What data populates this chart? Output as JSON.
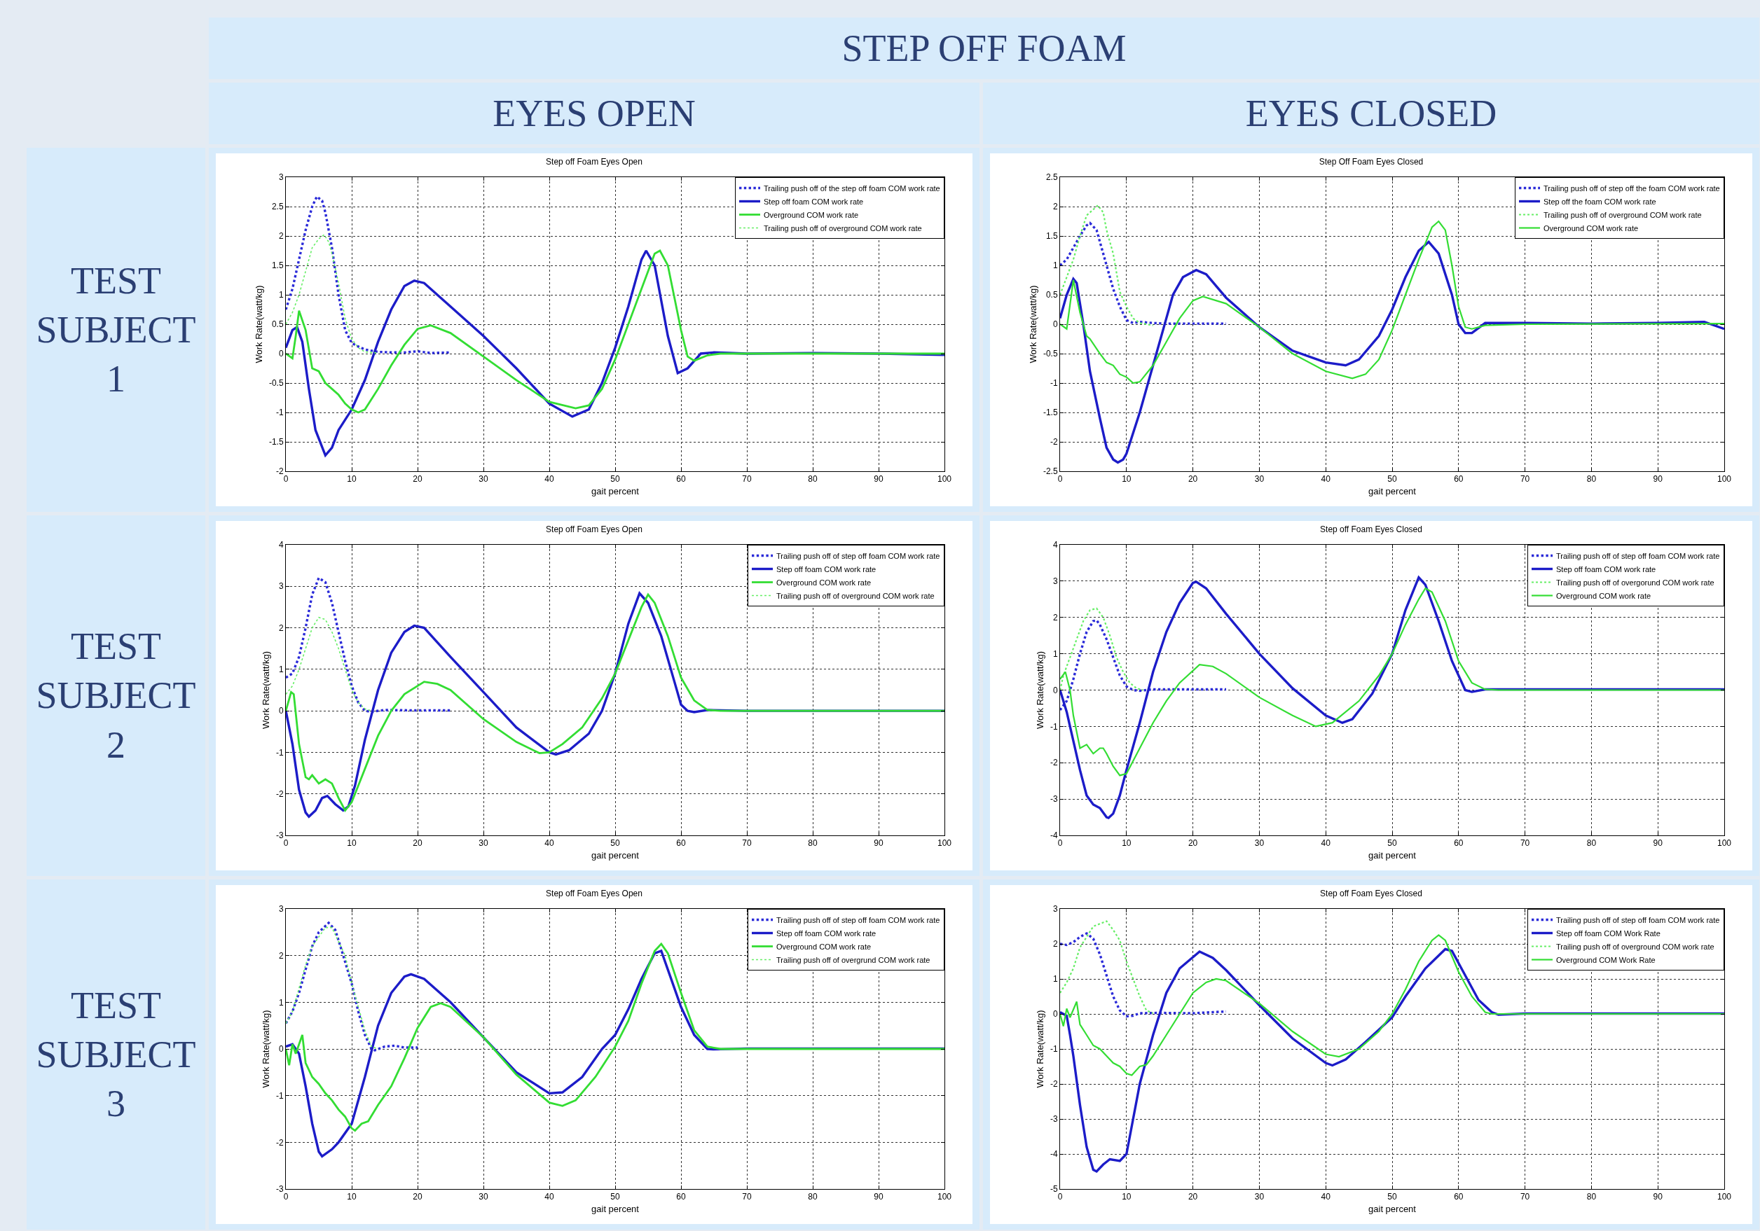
{
  "chart_data": [
    {
      "type": "line",
      "title": "Step off Foam Eyes Open",
      "xlabel": "gait percent",
      "ylabel": "Work Rate(watt/kg)",
      "annotations": [
        "STEP OFF FOAM",
        "EYES OPEN",
        "TEST SUBJECT 1"
      ],
      "xlim": [
        0,
        100
      ],
      "xticks": [
        0,
        10,
        20,
        30,
        40,
        50,
        60,
        70,
        80,
        90,
        100
      ],
      "ylim": [
        -2,
        3
      ],
      "yticks": [
        -2,
        -1.5,
        -1,
        -0.5,
        0,
        0.5,
        1,
        1.5,
        2,
        2.5,
        3
      ],
      "grid": true,
      "legend": "top right",
      "series": [
        {
          "name": "Trailing push off of the step off foam COM work rate",
          "color": "#2a2ad8",
          "line_style": "dotted",
          "x": [
            0,
            1,
            2,
            3,
            4,
            4.7,
            5.5,
            6,
            7,
            8,
            9,
            10,
            11,
            12,
            14,
            16,
            18,
            20,
            22,
            25
          ],
          "values": [
            0.75,
            1.1,
            1.6,
            2.1,
            2.5,
            2.67,
            2.6,
            2.4,
            1.8,
            1.0,
            0.4,
            0.18,
            0.12,
            0.07,
            0.03,
            0.02,
            0.02,
            0.04,
            0.01,
            0.02
          ]
        },
        {
          "name": "Step off foam COM work rate",
          "color": "#1c1cc8",
          "line_style": "solid",
          "x": [
            0,
            1,
            1.7,
            2.5,
            3.5,
            4.5,
            6,
            7,
            8,
            10,
            12,
            14,
            16,
            18,
            19.5,
            21,
            25,
            30,
            35,
            40,
            43.5,
            46,
            48,
            50,
            52,
            54,
            54.7,
            56,
            58,
            59.5,
            61,
            63,
            65,
            70,
            80,
            90,
            100
          ],
          "values": [
            0.1,
            0.4,
            0.45,
            0.2,
            -0.6,
            -1.3,
            -1.73,
            -1.6,
            -1.3,
            -0.95,
            -0.45,
            0.2,
            0.75,
            1.15,
            1.24,
            1.2,
            0.8,
            0.3,
            -0.25,
            -0.85,
            -1.07,
            -0.95,
            -0.5,
            0.1,
            0.8,
            1.6,
            1.75,
            1.5,
            0.3,
            -0.33,
            -0.25,
            0,
            0.02,
            0,
            0.01,
            0,
            -0.02
          ]
        },
        {
          "name": "Overground COM work rate",
          "color": "#33dd33",
          "line_style": "solid",
          "x": [
            0,
            1,
            1.5,
            2,
            3,
            4,
            5,
            6,
            7,
            8,
            9,
            10,
            11,
            12,
            14,
            16,
            18,
            20,
            22,
            25,
            30,
            35,
            40,
            44,
            46,
            48,
            50,
            52,
            54,
            56,
            56.8,
            58,
            60,
            61,
            62,
            64,
            66,
            100
          ],
          "values": [
            0,
            -0.08,
            0.3,
            0.73,
            0.4,
            -0.25,
            -0.3,
            -0.5,
            -0.6,
            -0.7,
            -0.85,
            -0.95,
            -1.0,
            -0.95,
            -0.6,
            -0.2,
            0.15,
            0.42,
            0.48,
            0.35,
            -0.05,
            -0.45,
            -0.82,
            -0.93,
            -0.88,
            -0.6,
            -0.1,
            0.5,
            1.1,
            1.7,
            1.75,
            1.5,
            0.4,
            -0.05,
            -0.12,
            -0.03,
            0,
            0
          ]
        },
        {
          "name": "Trailing push off of overground COM work rate",
          "color": "#66ee66",
          "line_style": "dotted",
          "x": [
            0,
            1,
            2,
            3,
            4,
            5,
            5.8,
            6.5,
            7,
            8,
            9,
            10,
            11,
            12,
            14
          ],
          "values": [
            0.5,
            0.7,
            1.0,
            1.4,
            1.8,
            1.95,
            2.02,
            1.9,
            1.7,
            1.2,
            0.6,
            0.25,
            0.1,
            0.03,
            0.01
          ]
        }
      ]
    },
    {
      "type": "line",
      "title": "Step Off Foam Eyes Closed",
      "xlabel": "gait percent",
      "ylabel": "Work Rate(watt/kg)",
      "annotations": [
        "EYES CLOSED"
      ],
      "xlim": [
        0,
        100
      ],
      "xticks": [
        0,
        10,
        20,
        30,
        40,
        50,
        60,
        70,
        80,
        90,
        100
      ],
      "ylim": [
        -2.5,
        2.5
      ],
      "yticks": [
        -2.5,
        -2,
        -1.5,
        -1,
        -0.5,
        0,
        0.5,
        1,
        1.5,
        2,
        2.5
      ],
      "grid": true,
      "legend": "top right",
      "series": [
        {
          "name": "Trailing push off of step off the foam COM work rate",
          "color": "#2a2ad8",
          "line_style": "dotted",
          "x": [
            0,
            1,
            2,
            3,
            4,
            4.5,
            5.5,
            6,
            7,
            8,
            9,
            10,
            11,
            12,
            14,
            16,
            20,
            25
          ],
          "values": [
            1.0,
            1.1,
            1.3,
            1.5,
            1.68,
            1.72,
            1.6,
            1.4,
            1.0,
            0.6,
            0.3,
            0.07,
            0.02,
            0.04,
            0.02,
            0.01,
            0.01,
            0.01
          ]
        },
        {
          "name": "Step off the foam COM work rate",
          "color": "#1c1cc8",
          "line_style": "solid",
          "x": [
            0,
            1,
            2,
            2.5,
            3.5,
            4.5,
            6,
            7,
            8,
            8.7,
            9.5,
            10,
            12,
            14,
            16,
            17,
            18.5,
            20.5,
            22,
            25,
            30,
            35,
            40,
            43,
            45,
            48,
            50,
            52,
            54,
            55.5,
            57,
            59,
            60,
            61,
            62,
            64,
            70,
            80,
            90,
            97,
            100
          ],
          "values": [
            0.1,
            0.5,
            0.77,
            0.7,
            0.0,
            -0.8,
            -1.6,
            -2.1,
            -2.3,
            -2.35,
            -2.3,
            -2.2,
            -1.5,
            -0.7,
            0.1,
            0.5,
            0.8,
            0.92,
            0.85,
            0.45,
            -0.05,
            -0.45,
            -0.65,
            -0.7,
            -0.6,
            -0.2,
            0.25,
            0.8,
            1.25,
            1.4,
            1.2,
            0.5,
            0.0,
            -0.15,
            -0.15,
            0.02,
            0.02,
            0.01,
            0.02,
            0.04,
            -0.08
          ]
        },
        {
          "name": "Trailing push off of overground COM work rate",
          "color": "#66ee66",
          "line_style": "dotted",
          "x": [
            0,
            1,
            2,
            3,
            4,
            5,
            5.7,
            6.5,
            7,
            8,
            9,
            10,
            11,
            12,
            13,
            14
          ],
          "values": [
            0.5,
            0.8,
            1.1,
            1.5,
            1.85,
            1.95,
            2.02,
            1.9,
            1.6,
            1.2,
            0.55,
            0.3,
            0.1,
            0.02,
            0.0,
            -0.02
          ]
        },
        {
          "name": "Overground COM work rate",
          "color": "#33dd33",
          "line_style": "solid",
          "x": [
            0,
            1,
            2,
            3,
            4,
            4.5,
            6,
            7,
            8,
            9,
            10,
            11,
            12,
            14,
            16,
            18,
            20,
            21.5,
            25,
            30,
            35,
            40,
            44,
            46,
            48,
            50,
            52,
            54,
            56,
            57,
            58,
            59,
            60,
            61,
            62,
            64,
            70,
            100
          ],
          "values": [
            0,
            -0.08,
            0.75,
            0.2,
            -0.2,
            -0.25,
            -0.5,
            -0.65,
            -0.7,
            -0.85,
            -0.9,
            -1.0,
            -0.98,
            -0.7,
            -0.3,
            0.1,
            0.4,
            0.47,
            0.35,
            -0.05,
            -0.5,
            -0.8,
            -0.92,
            -0.85,
            -0.6,
            -0.1,
            0.5,
            1.1,
            1.65,
            1.75,
            1.6,
            1.0,
            0.3,
            -0.05,
            -0.08,
            -0.02,
            0,
            0.01
          ]
        }
      ]
    },
    {
      "type": "line",
      "title": "Step off Foam Eyes Open",
      "xlabel": "gait percent",
      "ylabel": "Work Rate(watt/kg)",
      "annotations": [
        "TEST SUBJECT 2"
      ],
      "xlim": [
        0,
        100
      ],
      "xticks": [
        0,
        10,
        20,
        30,
        40,
        50,
        60,
        70,
        80,
        90,
        100
      ],
      "ylim": [
        -3,
        4
      ],
      "yticks": [
        -3,
        -2,
        -1,
        0,
        1,
        2,
        3,
        4
      ],
      "grid": true,
      "legend": "top right",
      "series": [
        {
          "name": "Trailing push off of step off foam COM work rate",
          "color": "#2a2ad8",
          "line_style": "dotted",
          "x": [
            0,
            1,
            2,
            3,
            4,
            5,
            6,
            7,
            8,
            9,
            10,
            11,
            12,
            13,
            15,
            20,
            25
          ],
          "values": [
            0.8,
            0.9,
            1.3,
            2.0,
            2.8,
            3.2,
            3.1,
            2.6,
            1.9,
            1.2,
            0.6,
            0.2,
            0.0,
            -0.02,
            0.02,
            0.01,
            0.01
          ]
        },
        {
          "name": "Step off foam COM work rate",
          "color": "#1c1cc8",
          "line_style": "solid",
          "x": [
            0,
            1,
            2,
            3,
            3.5,
            4.5,
            5.5,
            6.3,
            7.5,
            8.7,
            9.5,
            10.5,
            12,
            14,
            16,
            18,
            19.5,
            21,
            25,
            30,
            35,
            40,
            41,
            43,
            46,
            48,
            50,
            52,
            53.7,
            55,
            57,
            59,
            60,
            61,
            62,
            64,
            70,
            100
          ],
          "values": [
            0,
            -0.8,
            -1.9,
            -2.45,
            -2.55,
            -2.4,
            -2.1,
            -2.05,
            -2.25,
            -2.4,
            -2.3,
            -1.8,
            -0.7,
            0.5,
            1.4,
            1.9,
            2.05,
            2.0,
            1.3,
            0.45,
            -0.4,
            -1.0,
            -1.05,
            -0.95,
            -0.55,
            0.0,
            0.9,
            2.1,
            2.83,
            2.6,
            1.8,
            0.7,
            0.15,
            0.0,
            -0.03,
            0.02,
            0,
            0
          ]
        },
        {
          "name": "Overground COM work rate",
          "color": "#33dd33",
          "line_style": "solid",
          "x": [
            0,
            0.8,
            1.2,
            2,
            3,
            3.5,
            4,
            5,
            6,
            7,
            8,
            9,
            10,
            12,
            14,
            16,
            18,
            21,
            23,
            25,
            30,
            35,
            38.5,
            40,
            42,
            45,
            48,
            50,
            52,
            54,
            55,
            56,
            58,
            60,
            62,
            64,
            66,
            100
          ],
          "values": [
            0,
            0.45,
            0.4,
            -0.8,
            -1.6,
            -1.65,
            -1.55,
            -1.75,
            -1.65,
            -1.75,
            -2.1,
            -2.4,
            -2.2,
            -1.4,
            -0.6,
            0.0,
            0.4,
            0.7,
            0.65,
            0.5,
            -0.2,
            -0.75,
            -1.02,
            -1.0,
            -0.8,
            -0.4,
            0.3,
            0.9,
            1.7,
            2.5,
            2.8,
            2.6,
            1.8,
            0.8,
            0.25,
            0.02,
            0,
            0
          ]
        },
        {
          "name": "Trailing push off of overground COM work rate",
          "color": "#66ee66",
          "line_style": "dotted",
          "x": [
            0,
            1,
            2,
            3,
            4,
            5,
            6,
            7,
            8,
            9,
            10,
            11,
            12,
            13
          ],
          "values": [
            0.4,
            0.6,
            1.0,
            1.5,
            2.0,
            2.25,
            2.2,
            1.9,
            1.5,
            1.0,
            0.5,
            0.2,
            0.05,
            0.0
          ]
        }
      ]
    },
    {
      "type": "line",
      "title": "Step off Foam Eyes Closed",
      "xlabel": "gait percent",
      "ylabel": "Work Rate(watt/kg)",
      "xlim": [
        0,
        100
      ],
      "xticks": [
        0,
        10,
        20,
        30,
        40,
        50,
        60,
        70,
        80,
        90,
        100
      ],
      "ylim": [
        -4,
        4
      ],
      "yticks": [
        -4,
        -3,
        -2,
        -1,
        0,
        1,
        2,
        3,
        4
      ],
      "grid": true,
      "legend": "top right",
      "series": [
        {
          "name": "Trailing push off of step off foam COM work rate",
          "color": "#2a2ad8",
          "line_style": "dotted",
          "x": [
            0,
            1,
            2,
            3,
            4,
            5,
            5.5,
            6,
            7,
            8,
            9,
            10,
            11,
            12,
            14,
            20,
            25
          ],
          "values": [
            -0.55,
            -0.3,
            0.3,
            1.0,
            1.6,
            1.9,
            1.92,
            1.8,
            1.4,
            0.9,
            0.4,
            0.1,
            0.0,
            -0.02,
            0.02,
            0.02,
            0.02
          ]
        },
        {
          "name": "Step off foam COM work rate",
          "color": "#1c1cc8",
          "line_style": "solid",
          "x": [
            0,
            1,
            2,
            3,
            4,
            5,
            6,
            7,
            7.3,
            8,
            9,
            10,
            12,
            14,
            16,
            18,
            20,
            20.5,
            22,
            25,
            30,
            35,
            40,
            42.5,
            44,
            47,
            50,
            52,
            54,
            55,
            57,
            59,
            61,
            62,
            64,
            70,
            100
          ],
          "values": [
            0,
            -0.6,
            -1.4,
            -2.2,
            -2.9,
            -3.15,
            -3.25,
            -3.5,
            -3.52,
            -3.4,
            -2.9,
            -2.2,
            -0.9,
            0.5,
            1.6,
            2.4,
            2.95,
            2.98,
            2.8,
            2.1,
            1.0,
            0.05,
            -0.7,
            -0.9,
            -0.8,
            -0.1,
            1.0,
            2.2,
            3.1,
            2.9,
            1.9,
            0.8,
            0.0,
            -0.05,
            0.02,
            0.02,
            0.02
          ]
        },
        {
          "name": "Trailing push off of overgorund COM work rate",
          "color": "#66ee66",
          "line_style": "dotted",
          "x": [
            0,
            0.5,
            1.5,
            2.5,
            3.5,
            4.5,
            5.5,
            6.5,
            7.5,
            8.5,
            9.5,
            10.5,
            11.5,
            12.5
          ],
          "values": [
            0.0,
            0.4,
            0.9,
            1.4,
            1.9,
            2.2,
            2.25,
            2.0,
            1.5,
            0.9,
            0.5,
            0.2,
            0.05,
            0.0
          ]
        },
        {
          "name": "Overground COM work rate",
          "color": "#33dd33",
          "line_style": "solid",
          "x": [
            0,
            0.8,
            1.5,
            2,
            3,
            4,
            5,
            6,
            6.5,
            7,
            8,
            9,
            10,
            12,
            14,
            16,
            18,
            21,
            23,
            25,
            30,
            35,
            38.5,
            41,
            45,
            48,
            50,
            52,
            54,
            55,
            56,
            58,
            60,
            62,
            64,
            66,
            100
          ],
          "values": [
            0.3,
            0.5,
            0.0,
            -0.7,
            -1.6,
            -1.5,
            -1.75,
            -1.6,
            -1.6,
            -1.75,
            -2.1,
            -2.35,
            -2.3,
            -1.6,
            -0.9,
            -0.3,
            0.2,
            0.7,
            0.65,
            0.45,
            -0.2,
            -0.7,
            -1.0,
            -0.9,
            -0.3,
            0.4,
            1.0,
            1.8,
            2.5,
            2.8,
            2.7,
            1.9,
            0.8,
            0.2,
            0.02,
            0,
            0
          ]
        }
      ]
    },
    {
      "type": "line",
      "title": "Step off Foam Eyes Open",
      "xlabel": "gait percent",
      "ylabel": "Work Rate(watt/kg)",
      "annotations": [
        "TEST SUBJECT 3"
      ],
      "xlim": [
        0,
        100
      ],
      "xticks": [
        0,
        10,
        20,
        30,
        40,
        50,
        60,
        70,
        80,
        90,
        100
      ],
      "ylim": [
        -3,
        3
      ],
      "yticks": [
        -3,
        -2,
        -1,
        0,
        1,
        2,
        3
      ],
      "grid": true,
      "legend": "top right",
      "series": [
        {
          "name": "Trailing push off of step off foam COM work rate",
          "color": "#2a2ad8",
          "line_style": "dotted",
          "x": [
            0,
            1,
            2,
            3,
            4,
            5,
            6.5,
            7.5,
            8.5,
            10,
            11,
            12,
            13,
            13.5,
            15,
            16.5,
            18,
            20
          ],
          "values": [
            0.55,
            0.8,
            1.2,
            1.7,
            2.2,
            2.5,
            2.7,
            2.55,
            2.1,
            1.4,
            0.8,
            0.3,
            0.0,
            -0.03,
            0.05,
            0.07,
            0.03,
            0.03
          ]
        },
        {
          "name": "Step off foam COM work rate",
          "color": "#1c1cc8",
          "line_style": "solid",
          "x": [
            0,
            1,
            2,
            3,
            4,
            5,
            5.5,
            7,
            8,
            10,
            12,
            14,
            16,
            18,
            19,
            21,
            25,
            30,
            35,
            40,
            42,
            45,
            48,
            50,
            52,
            54,
            56,
            57,
            58,
            60,
            62,
            64,
            65,
            70,
            100
          ],
          "values": [
            0.05,
            0.1,
            -0.1,
            -0.8,
            -1.6,
            -2.2,
            -2.3,
            -2.15,
            -2.0,
            -1.6,
            -0.6,
            0.5,
            1.2,
            1.55,
            1.6,
            1.5,
            1.0,
            0.25,
            -0.5,
            -0.95,
            -0.93,
            -0.6,
            0.0,
            0.3,
            0.85,
            1.5,
            2.05,
            2.1,
            1.7,
            0.9,
            0.3,
            0.0,
            -0.01,
            0.01,
            0.01
          ]
        },
        {
          "name": "Overground COM work rate",
          "color": "#33dd33",
          "line_style": "solid",
          "x": [
            0,
            0.5,
            1,
            1.5,
            2.5,
            3,
            4,
            5,
            6,
            7,
            8,
            9,
            10,
            10.5,
            11.5,
            12.5,
            14,
            16,
            18,
            20,
            22,
            23.5,
            25,
            30,
            35,
            40,
            42,
            44,
            47,
            50,
            52,
            54,
            56,
            57,
            58,
            60,
            62,
            64,
            66,
            100
          ],
          "values": [
            0,
            -0.35,
            0.1,
            -0.1,
            0.3,
            -0.3,
            -0.6,
            -0.75,
            -0.95,
            -1.1,
            -1.3,
            -1.45,
            -1.7,
            -1.75,
            -1.6,
            -1.55,
            -1.2,
            -0.8,
            -0.2,
            0.45,
            0.9,
            0.98,
            0.9,
            0.25,
            -0.55,
            -1.15,
            -1.22,
            -1.1,
            -0.6,
            0.05,
            0.6,
            1.4,
            2.1,
            2.25,
            2.05,
            1.2,
            0.4,
            0.05,
            0,
            0
          ]
        },
        {
          "name": "Trailing push off of overgrund COM work rate",
          "color": "#66ee66",
          "line_style": "dotted",
          "x": [
            0,
            1,
            2,
            3,
            4,
            5,
            6,
            7,
            8,
            9,
            10,
            11,
            12,
            13,
            14
          ],
          "values": [
            0.55,
            0.8,
            1.3,
            1.8,
            2.2,
            2.4,
            2.6,
            2.6,
            2.3,
            2.0,
            1.4,
            0.9,
            0.4,
            0.05,
            0.0
          ]
        }
      ]
    },
    {
      "type": "line",
      "title": "Step off Foam Eyes Closed",
      "xlabel": "gait percent",
      "ylabel": "Work Rate(watt/kg)",
      "xlim": [
        0,
        100
      ],
      "xticks": [
        0,
        10,
        20,
        30,
        40,
        50,
        60,
        70,
        80,
        90,
        100
      ],
      "ylim": [
        -5,
        3
      ],
      "yticks": [
        -5,
        -4,
        -3,
        -2,
        -1,
        0,
        1,
        2,
        3
      ],
      "grid": true,
      "legend": "top right",
      "series": [
        {
          "name": "Trailing push off of step off foam COM work rate",
          "color": "#2a2ad8",
          "line_style": "dotted",
          "x": [
            0,
            1,
            2,
            3,
            4,
            5,
            6,
            7,
            8,
            9,
            10,
            11,
            12,
            15,
            20,
            23,
            25
          ],
          "values": [
            2.0,
            1.97,
            2.05,
            2.2,
            2.3,
            2.15,
            1.7,
            1.1,
            0.5,
            0.1,
            -0.07,
            -0.05,
            0.02,
            0.03,
            0.02,
            0.05,
            0.07
          ]
        },
        {
          "name": "Step off foam COM Work Rate",
          "color": "#1c1cc8",
          "line_style": "solid",
          "x": [
            0,
            1,
            1.5,
            2,
            3,
            4,
            5,
            5.5,
            6.5,
            7.5,
            9,
            10,
            11,
            12,
            14,
            16,
            18,
            21,
            23,
            25,
            30,
            35,
            40,
            41,
            43,
            46,
            50,
            52,
            55,
            58,
            59,
            61,
            63,
            65,
            66,
            70,
            100
          ],
          "values": [
            0.05,
            -0.05,
            -0.6,
            -1.2,
            -2.6,
            -3.8,
            -4.45,
            -4.5,
            -4.3,
            -4.15,
            -4.2,
            -4.0,
            -3.0,
            -2.0,
            -0.6,
            0.6,
            1.3,
            1.78,
            1.6,
            1.25,
            0.25,
            -0.7,
            -1.4,
            -1.47,
            -1.3,
            -0.8,
            -0.1,
            0.5,
            1.3,
            1.85,
            1.8,
            1.1,
            0.4,
            0.05,
            -0.02,
            0.01,
            0.01
          ]
        },
        {
          "name": "Trailing push off of overground COM work rate",
          "color": "#66ee66",
          "line_style": "dotted",
          "x": [
            0,
            1,
            2,
            3,
            4,
            5,
            7,
            8,
            9,
            10,
            11,
            12,
            13,
            14
          ],
          "values": [
            0.6,
            0.9,
            1.3,
            1.9,
            2.2,
            2.5,
            2.65,
            2.4,
            2.1,
            1.5,
            1.0,
            0.5,
            0.1,
            0.02
          ]
        },
        {
          "name": "Overground COM Work Rate",
          "color": "#33dd33",
          "line_style": "solid",
          "x": [
            0,
            0.5,
            1,
            1.5,
            2.5,
            3,
            4,
            5,
            6,
            7,
            8,
            9,
            10,
            10.8,
            12,
            13,
            14,
            16,
            18,
            20,
            22,
            23.5,
            25,
            30,
            35,
            40,
            42,
            45,
            48,
            50,
            52,
            54,
            56,
            57,
            58,
            60,
            62,
            64,
            65,
            100
          ],
          "values": [
            0,
            -0.35,
            0.15,
            -0.1,
            0.35,
            -0.3,
            -0.6,
            -0.9,
            -1.0,
            -1.2,
            -1.4,
            -1.5,
            -1.7,
            -1.75,
            -1.5,
            -1.45,
            -1.2,
            -0.6,
            0.0,
            0.6,
            0.9,
            1.0,
            0.95,
            0.3,
            -0.5,
            -1.15,
            -1.22,
            -1.0,
            -0.5,
            0.0,
            0.7,
            1.5,
            2.1,
            2.25,
            2.1,
            1.2,
            0.5,
            0.05,
            0,
            0
          ]
        }
      ]
    }
  ]
}
